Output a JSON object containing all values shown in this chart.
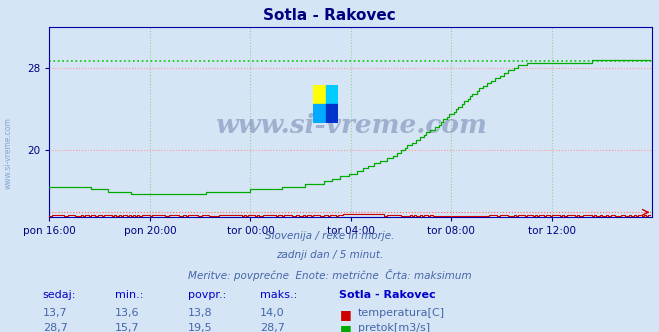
{
  "title": "Sotla - Rakovec",
  "bg_color": "#d5e5f5",
  "title_color": "#000080",
  "axis_color": "#0000aa",
  "tick_color": "#000080",
  "grid_color_h": "#ff9999",
  "grid_color_v": "#99cc99",
  "temp_color": "#cc0000",
  "flow_color": "#00aa00",
  "max_flow_line_color": "#00cc00",
  "max_temp_line_color": "#ff6666",
  "footnote_color": "#4466aa",
  "footnote1": "Slovenija / reke in morje.",
  "footnote2": "zadnji dan / 5 minut.",
  "footnote3": "Meritve: povprečne  Enote: metrične  Črta: maksimum",
  "stats_headers": [
    "sedaj:",
    "min.:",
    "povpr.:",
    "maks.:",
    "Sotla - Rakovec"
  ],
  "stats_temp": [
    "13,7",
    "13,6",
    "13,8",
    "14,0"
  ],
  "stats_flow": [
    "28,7",
    "15,7",
    "19,5",
    "28,7"
  ],
  "label_temp": "temperatura[C]",
  "label_flow": "pretok[m3/s]",
  "temp_max": 14.0,
  "temp_min": 13.6,
  "flow_max": 28.7,
  "flow_min": 15.7,
  "ylim": [
    13.5,
    32.0
  ],
  "yticks": [
    20,
    28
  ],
  "n_points": 288,
  "xtick_labels": [
    "pon 16:00",
    "pon 20:00",
    "tor 00:00",
    "tor 04:00",
    "tor 08:00",
    "tor 12:00"
  ],
  "xtick_positions": [
    0,
    48,
    96,
    144,
    192,
    240
  ],
  "watermark_text": "www.si-vreme.com",
  "side_watermark": "www.si-vreme.com"
}
